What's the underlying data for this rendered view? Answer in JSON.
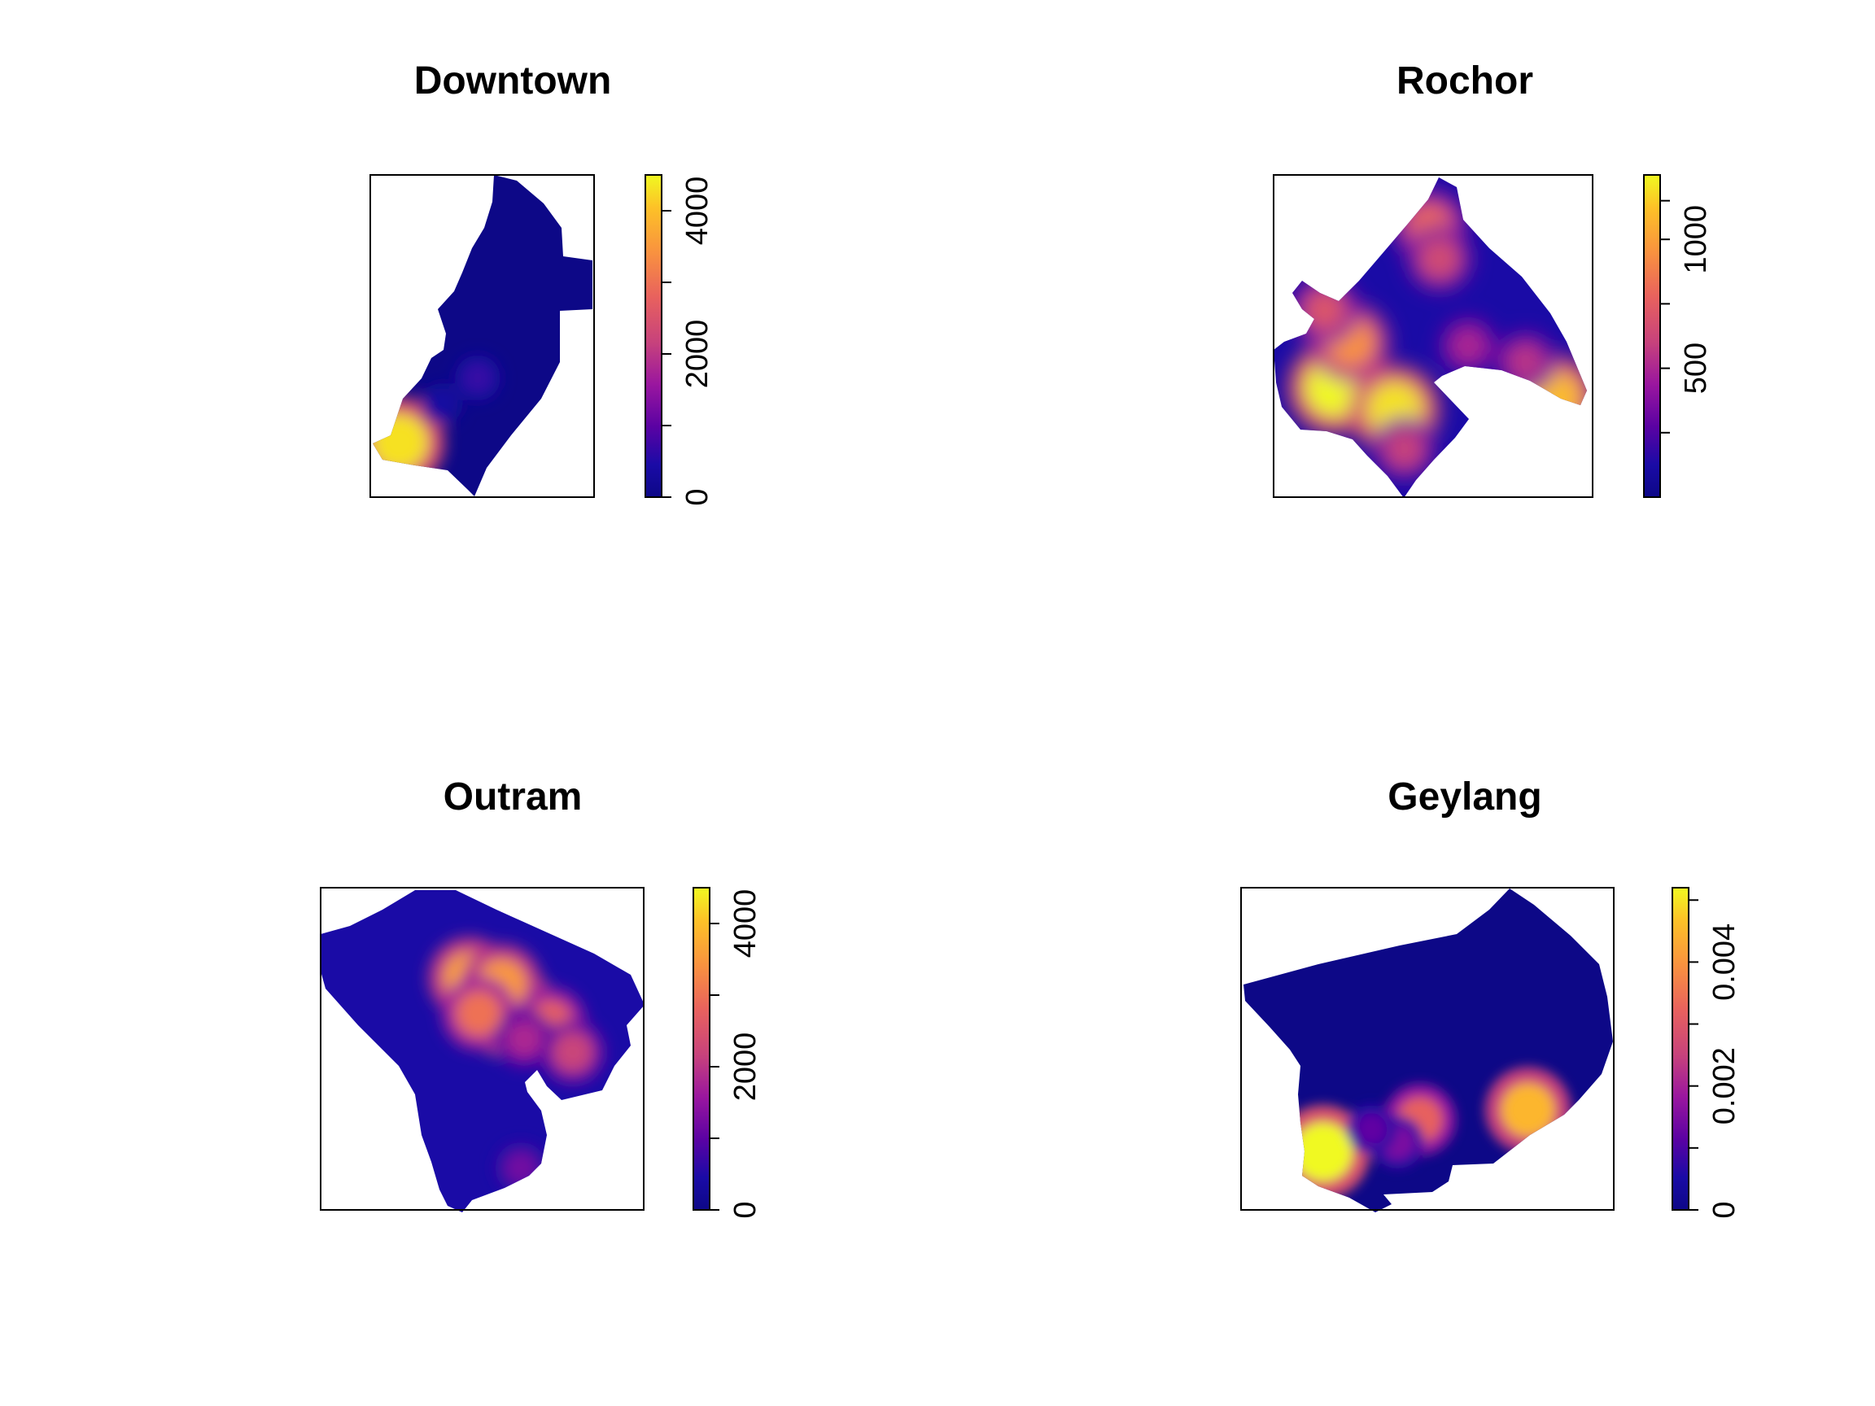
{
  "chart_data": [
    {
      "type": "heatmap",
      "title": "Downtown",
      "colorbar": {
        "range": [
          0,
          4500
        ],
        "ticks": [
          0,
          2000,
          4000
        ],
        "tick_labels": [
          "0",
          "2000",
          "4000"
        ],
        "minor_ticks": [
          1000,
          3000
        ]
      },
      "hotspots": [
        {
          "x": 0.13,
          "y": 0.83,
          "value": 4300
        },
        {
          "x": 0.48,
          "y": 0.63,
          "value": 700
        },
        {
          "x": 0.32,
          "y": 0.71,
          "value": 400
        }
      ]
    },
    {
      "type": "heatmap",
      "title": "Rochor",
      "colorbar": {
        "range": [
          0,
          1250
        ],
        "ticks": [
          500,
          1000
        ],
        "tick_labels": [
          "500",
          "1000"
        ],
        "minor_ticks": [
          250,
          750,
          1150
        ]
      },
      "hotspots": [
        {
          "x": 0.19,
          "y": 0.66,
          "value": 1250
        },
        {
          "x": 0.38,
          "y": 0.73,
          "value": 1200
        },
        {
          "x": 0.24,
          "y": 0.52,
          "value": 950
        },
        {
          "x": 0.88,
          "y": 0.69,
          "value": 1100
        },
        {
          "x": 0.49,
          "y": 0.16,
          "value": 800
        },
        {
          "x": 0.52,
          "y": 0.26,
          "value": 650
        },
        {
          "x": 0.61,
          "y": 0.53,
          "value": 500
        },
        {
          "x": 0.16,
          "y": 0.42,
          "value": 700
        },
        {
          "x": 0.41,
          "y": 0.85,
          "value": 600
        },
        {
          "x": 0.79,
          "y": 0.58,
          "value": 550
        }
      ]
    },
    {
      "type": "heatmap",
      "title": "Outram",
      "colorbar": {
        "range": [
          0,
          4500
        ],
        "ticks": [
          0,
          2000,
          4000
        ],
        "tick_labels": [
          "0",
          "2000",
          "4000"
        ],
        "minor_ticks": [
          1000,
          3000
        ]
      },
      "hotspots": [
        {
          "x": 0.58,
          "y": 0.38,
          "value": 4500
        },
        {
          "x": 0.46,
          "y": 0.28,
          "value": 3600
        },
        {
          "x": 0.56,
          "y": 0.3,
          "value": 3500
        },
        {
          "x": 0.49,
          "y": 0.39,
          "value": 3000
        },
        {
          "x": 0.71,
          "y": 0.42,
          "value": 2800
        },
        {
          "x": 0.78,
          "y": 0.51,
          "value": 2200
        },
        {
          "x": 0.63,
          "y": 0.47,
          "value": 1800
        },
        {
          "x": 0.62,
          "y": 0.87,
          "value": 1200
        }
      ]
    },
    {
      "type": "heatmap",
      "title": "Geylang",
      "colorbar": {
        "range": [
          0,
          0.0052
        ],
        "ticks": [
          0,
          0.002,
          0.004
        ],
        "tick_labels": [
          "0",
          "0.002",
          "0.004"
        ],
        "minor_ticks": [
          0.001,
          0.003,
          0.005
        ]
      },
      "hotspots": [
        {
          "x": 0.22,
          "y": 0.82,
          "value": 0.0052
        },
        {
          "x": 0.77,
          "y": 0.69,
          "value": 0.0045
        },
        {
          "x": 0.48,
          "y": 0.72,
          "value": 0.0032
        },
        {
          "x": 0.42,
          "y": 0.79,
          "value": 0.0015
        },
        {
          "x": 0.35,
          "y": 0.75,
          "value": 0.0012
        }
      ]
    }
  ]
}
